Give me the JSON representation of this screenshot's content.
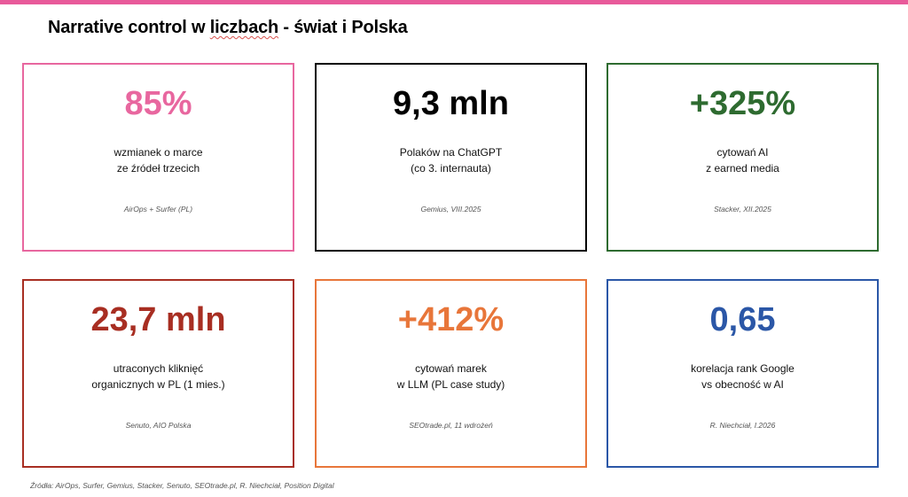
{
  "accent_color": "#e85a9a",
  "title": {
    "prefix": "Narrative control w ",
    "flagged": "liczbach",
    "suffix": " - świat i Polska"
  },
  "cards": [
    {
      "value": "85%",
      "desc_line1": "wzmianek o marce",
      "desc_line2": "ze źródeł trzecich",
      "source": "AirOps + Surfer (PL)",
      "color": "#e8679f"
    },
    {
      "value": "9,3 mln",
      "desc_line1": "Polaków na ChatGPT",
      "desc_line2": "(co 3. internauta)",
      "source": "Gemius, VIII.2025",
      "color": "#000000"
    },
    {
      "value": "+325%",
      "desc_line1": "cytowań AI",
      "desc_line2": "z earned media",
      "source": "Stacker, XII.2025",
      "color": "#2e6b30"
    },
    {
      "value": "23,7 mln",
      "desc_line1": "utraconych kliknięć",
      "desc_line2": "organicznych w PL (1 mies.)",
      "source": "Senuto, AIO Polska",
      "color": "#a82e22"
    },
    {
      "value": "+412%",
      "desc_line1": "cytowań marek",
      "desc_line2": "w LLM (PL case study)",
      "source": "SEOtrade.pl, 11 wdrożeń",
      "color": "#e8763a"
    },
    {
      "value": "0,65",
      "desc_line1": "korelacja rank Google",
      "desc_line2": "vs obecność w AI",
      "source": "R. Niechciał, I.2026",
      "color": "#2b57a7"
    }
  ],
  "footer": "Źródła: AirOps, Surfer, Gemius, Stacker, Senuto, SEOtrade.pl, R. Niechciał, Position Digital"
}
